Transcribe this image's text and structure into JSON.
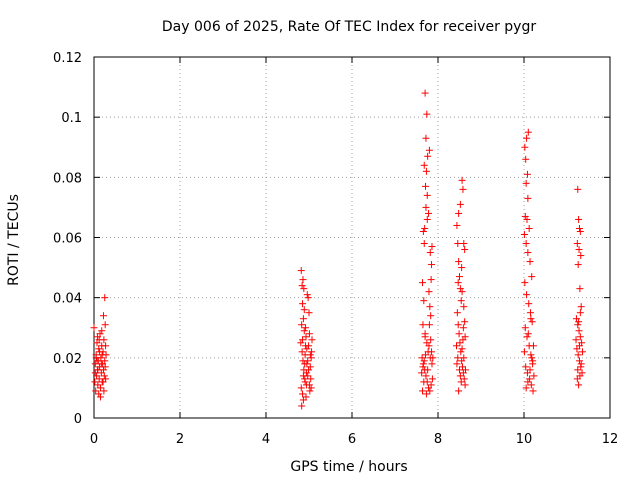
{
  "chart_data": {
    "type": "scatter",
    "title": "Day 006 of 2025, Rate Of TEC Index for receiver pygr",
    "xlabel": "GPS time / hours",
    "ylabel": "ROTI / TECUs",
    "xlim": [
      0,
      12
    ],
    "ylim": [
      0,
      0.12
    ],
    "xticks": [
      0,
      2,
      4,
      6,
      8,
      10,
      12
    ],
    "yticks": [
      0,
      0.02,
      0.04,
      0.06,
      0.08,
      0.1,
      0.12
    ],
    "xtick_labels": [
      "0",
      "2",
      "4",
      "6",
      "8",
      "10",
      "12"
    ],
    "ytick_labels": [
      "0",
      "0.02",
      "0.04",
      "0.06",
      "0.08",
      "0.1",
      "0.12"
    ],
    "grid": true,
    "marker": "+",
    "color": "#ff0000",
    "series": [
      {
        "name": "ROTI",
        "points": [
          [
            0.0,
            0.03
          ],
          [
            0.02,
            0.012
          ],
          [
            0.03,
            0.018
          ],
          [
            0.04,
            0.009
          ],
          [
            0.05,
            0.021
          ],
          [
            0.06,
            0.014
          ],
          [
            0.07,
            0.025
          ],
          [
            0.08,
            0.016
          ],
          [
            0.09,
            0.011
          ],
          [
            0.1,
            0.019
          ],
          [
            0.11,
            0.023
          ],
          [
            0.12,
            0.013
          ],
          [
            0.13,
            0.017
          ],
          [
            0.14,
            0.028
          ],
          [
            0.15,
            0.01
          ],
          [
            0.16,
            0.02
          ],
          [
            0.17,
            0.015
          ],
          [
            0.18,
            0.024
          ],
          [
            0.19,
            0.012
          ],
          [
            0.2,
            0.018
          ],
          [
            0.21,
            0.022
          ],
          [
            0.22,
            0.016
          ],
          [
            0.23,
            0.026
          ],
          [
            0.24,
            0.014
          ],
          [
            0.25,
            0.019
          ],
          [
            0.26,
            0.031
          ],
          [
            0.27,
            0.013
          ],
          [
            0.28,
            0.021
          ],
          [
            0.25,
            0.04
          ],
          [
            0.22,
            0.034
          ],
          [
            0.18,
            0.029
          ],
          [
            0.08,
            0.027
          ],
          [
            0.11,
            0.008
          ],
          [
            0.15,
            0.007
          ],
          [
            0.05,
            0.02
          ],
          [
            0.09,
            0.016
          ],
          [
            0.13,
            0.022
          ],
          [
            0.17,
            0.018
          ],
          [
            0.21,
            0.012
          ],
          [
            0.26,
            0.017
          ],
          [
            0.03,
            0.015
          ],
          [
            0.07,
            0.019
          ],
          [
            0.12,
            0.026
          ],
          [
            0.19,
            0.021
          ],
          [
            0.23,
            0.009
          ],
          [
            0.27,
            0.024
          ],
          [
            4.82,
            0.049
          ],
          [
            4.84,
            0.044
          ],
          [
            4.86,
            0.046
          ],
          [
            4.88,
            0.043
          ],
          [
            4.85,
            0.038
          ],
          [
            4.83,
            0.031
          ],
          [
            4.87,
            0.033
          ],
          [
            4.89,
            0.029
          ],
          [
            4.81,
            0.025
          ],
          [
            4.84,
            0.022
          ],
          [
            4.86,
            0.019
          ],
          [
            4.88,
            0.016
          ],
          [
            4.9,
            0.013
          ],
          [
            4.82,
            0.01
          ],
          [
            4.85,
            0.008
          ],
          [
            4.87,
            0.006
          ],
          [
            4.83,
            0.004
          ],
          [
            4.91,
            0.021
          ],
          [
            4.93,
            0.027
          ],
          [
            4.95,
            0.018
          ],
          [
            4.97,
            0.014
          ],
          [
            4.99,
            0.024
          ],
          [
            5.01,
            0.011
          ],
          [
            5.03,
            0.017
          ],
          [
            5.05,
            0.02
          ],
          [
            5.07,
            0.026
          ],
          [
            4.96,
            0.041
          ],
          [
            4.98,
            0.04
          ],
          [
            5.0,
            0.035
          ],
          [
            4.92,
            0.03
          ],
          [
            4.94,
            0.015
          ],
          [
            5.02,
            0.009
          ],
          [
            5.04,
            0.013
          ],
          [
            5.06,
            0.022
          ],
          [
            4.89,
            0.036
          ],
          [
            4.91,
            0.012
          ],
          [
            4.93,
            0.007
          ],
          [
            4.95,
            0.023
          ],
          [
            4.97,
            0.019
          ],
          [
            4.99,
            0.016
          ],
          [
            5.01,
            0.028
          ],
          [
            5.03,
            0.021
          ],
          [
            5.05,
            0.01
          ],
          [
            4.85,
            0.026
          ],
          [
            4.87,
            0.014
          ],
          [
            4.9,
            0.018
          ],
          [
            4.92,
            0.024
          ],
          [
            4.94,
            0.011
          ],
          [
            7.7,
            0.108
          ],
          [
            7.74,
            0.101
          ],
          [
            7.72,
            0.093
          ],
          [
            7.76,
            0.087
          ],
          [
            7.68,
            0.084
          ],
          [
            7.8,
            0.089
          ],
          [
            7.73,
            0.082
          ],
          [
            7.71,
            0.077
          ],
          [
            7.75,
            0.074
          ],
          [
            7.78,
            0.068
          ],
          [
            7.66,
            0.062
          ],
          [
            7.69,
            0.063
          ],
          [
            7.82,
            0.055
          ],
          [
            7.85,
            0.051
          ],
          [
            7.84,
            0.046
          ],
          [
            7.79,
            0.042
          ],
          [
            7.64,
            0.045
          ],
          [
            7.67,
            0.039
          ],
          [
            7.81,
            0.037
          ],
          [
            7.83,
            0.034
          ],
          [
            7.65,
            0.031
          ],
          [
            7.7,
            0.028
          ],
          [
            7.74,
            0.025
          ],
          [
            7.77,
            0.022
          ],
          [
            7.63,
            0.02
          ],
          [
            7.66,
            0.018
          ],
          [
            7.69,
            0.016
          ],
          [
            7.72,
            0.014
          ],
          [
            7.75,
            0.012
          ],
          [
            7.78,
            0.01
          ],
          [
            7.81,
            0.009
          ],
          [
            7.84,
            0.011
          ],
          [
            7.87,
            0.013
          ],
          [
            7.62,
            0.015
          ],
          [
            7.65,
            0.017
          ],
          [
            7.68,
            0.019
          ],
          [
            7.71,
            0.021
          ],
          [
            7.73,
            0.008
          ],
          [
            7.76,
            0.016
          ],
          [
            7.79,
            0.024
          ],
          [
            7.82,
            0.02
          ],
          [
            7.86,
            0.018
          ],
          [
            7.64,
            0.009
          ],
          [
            7.67,
            0.012
          ],
          [
            7.7,
            0.027
          ],
          [
            7.8,
            0.031
          ],
          [
            7.83,
            0.026
          ],
          [
            7.85,
            0.022
          ],
          [
            7.72,
            0.07
          ],
          [
            7.75,
            0.066
          ],
          [
            7.68,
            0.058
          ],
          [
            7.86,
            0.057
          ],
          [
            7.88,
            0.02
          ],
          [
            8.44,
            0.064
          ],
          [
            8.46,
            0.058
          ],
          [
            8.48,
            0.052
          ],
          [
            8.5,
            0.047
          ],
          [
            8.52,
            0.043
          ],
          [
            8.54,
            0.039
          ],
          [
            8.56,
            0.079
          ],
          [
            8.58,
            0.076
          ],
          [
            8.6,
            0.058
          ],
          [
            8.62,
            0.056
          ],
          [
            8.45,
            0.035
          ],
          [
            8.47,
            0.031
          ],
          [
            8.49,
            0.028
          ],
          [
            8.51,
            0.025
          ],
          [
            8.53,
            0.022
          ],
          [
            8.55,
            0.019
          ],
          [
            8.57,
            0.017
          ],
          [
            8.59,
            0.015
          ],
          [
            8.61,
            0.013
          ],
          [
            8.63,
            0.011
          ],
          [
            8.43,
            0.024
          ],
          [
            8.46,
            0.02
          ],
          [
            8.5,
            0.016
          ],
          [
            8.54,
            0.012
          ],
          [
            8.58,
            0.026
          ],
          [
            8.62,
            0.032
          ],
          [
            8.48,
            0.068
          ],
          [
            8.52,
            0.071
          ],
          [
            8.56,
            0.042
          ],
          [
            8.6,
            0.037
          ],
          [
            8.44,
            0.018
          ],
          [
            8.48,
            0.009
          ],
          [
            8.52,
            0.014
          ],
          [
            8.56,
            0.023
          ],
          [
            8.6,
            0.02
          ],
          [
            8.64,
            0.016
          ],
          [
            8.47,
            0.045
          ],
          [
            8.55,
            0.05
          ],
          [
            8.59,
            0.03
          ],
          [
            8.63,
            0.027
          ],
          [
            10.02,
            0.09
          ],
          [
            10.06,
            0.093
          ],
          [
            10.1,
            0.095
          ],
          [
            10.04,
            0.086
          ],
          [
            10.08,
            0.081
          ],
          [
            10.05,
            0.078
          ],
          [
            10.09,
            0.073
          ],
          [
            10.03,
            0.067
          ],
          [
            10.07,
            0.066
          ],
          [
            10.12,
            0.063
          ],
          [
            10.01,
            0.061
          ],
          [
            10.05,
            0.058
          ],
          [
            10.09,
            0.055
          ],
          [
            10.14,
            0.052
          ],
          [
            10.18,
            0.047
          ],
          [
            10.02,
            0.045
          ],
          [
            10.06,
            0.041
          ],
          [
            10.11,
            0.038
          ],
          [
            10.15,
            0.035
          ],
          [
            10.19,
            0.032
          ],
          [
            10.03,
            0.03
          ],
          [
            10.07,
            0.027
          ],
          [
            10.12,
            0.024
          ],
          [
            10.16,
            0.021
          ],
          [
            10.2,
            0.019
          ],
          [
            10.04,
            0.017
          ],
          [
            10.08,
            0.015
          ],
          [
            10.13,
            0.013
          ],
          [
            10.17,
            0.011
          ],
          [
            10.21,
            0.009
          ],
          [
            10.05,
            0.01
          ],
          [
            10.09,
            0.012
          ],
          [
            10.14,
            0.016
          ],
          [
            10.18,
            0.02
          ],
          [
            10.22,
            0.024
          ],
          [
            10.01,
            0.022
          ],
          [
            10.1,
            0.028
          ],
          [
            10.16,
            0.033
          ],
          [
            10.2,
            0.018
          ],
          [
            10.23,
            0.014
          ],
          [
            11.25,
            0.076
          ],
          [
            11.27,
            0.066
          ],
          [
            11.29,
            0.063
          ],
          [
            11.31,
            0.062
          ],
          [
            11.24,
            0.058
          ],
          [
            11.28,
            0.056
          ],
          [
            11.32,
            0.054
          ],
          [
            11.26,
            0.051
          ],
          [
            11.3,
            0.043
          ],
          [
            11.33,
            0.037
          ],
          [
            11.22,
            0.033
          ],
          [
            11.25,
            0.031
          ],
          [
            11.28,
            0.029
          ],
          [
            11.31,
            0.027
          ],
          [
            11.34,
            0.025
          ],
          [
            11.23,
            0.023
          ],
          [
            11.26,
            0.021
          ],
          [
            11.29,
            0.019
          ],
          [
            11.32,
            0.017
          ],
          [
            11.35,
            0.015
          ],
          [
            11.24,
            0.013
          ],
          [
            11.27,
            0.011
          ],
          [
            11.3,
            0.014
          ],
          [
            11.33,
            0.018
          ],
          [
            11.21,
            0.026
          ],
          [
            11.36,
            0.022
          ],
          [
            11.27,
            0.032
          ],
          [
            11.31,
            0.035
          ],
          [
            11.25,
            0.016
          ],
          [
            11.29,
            0.024
          ]
        ]
      }
    ]
  }
}
